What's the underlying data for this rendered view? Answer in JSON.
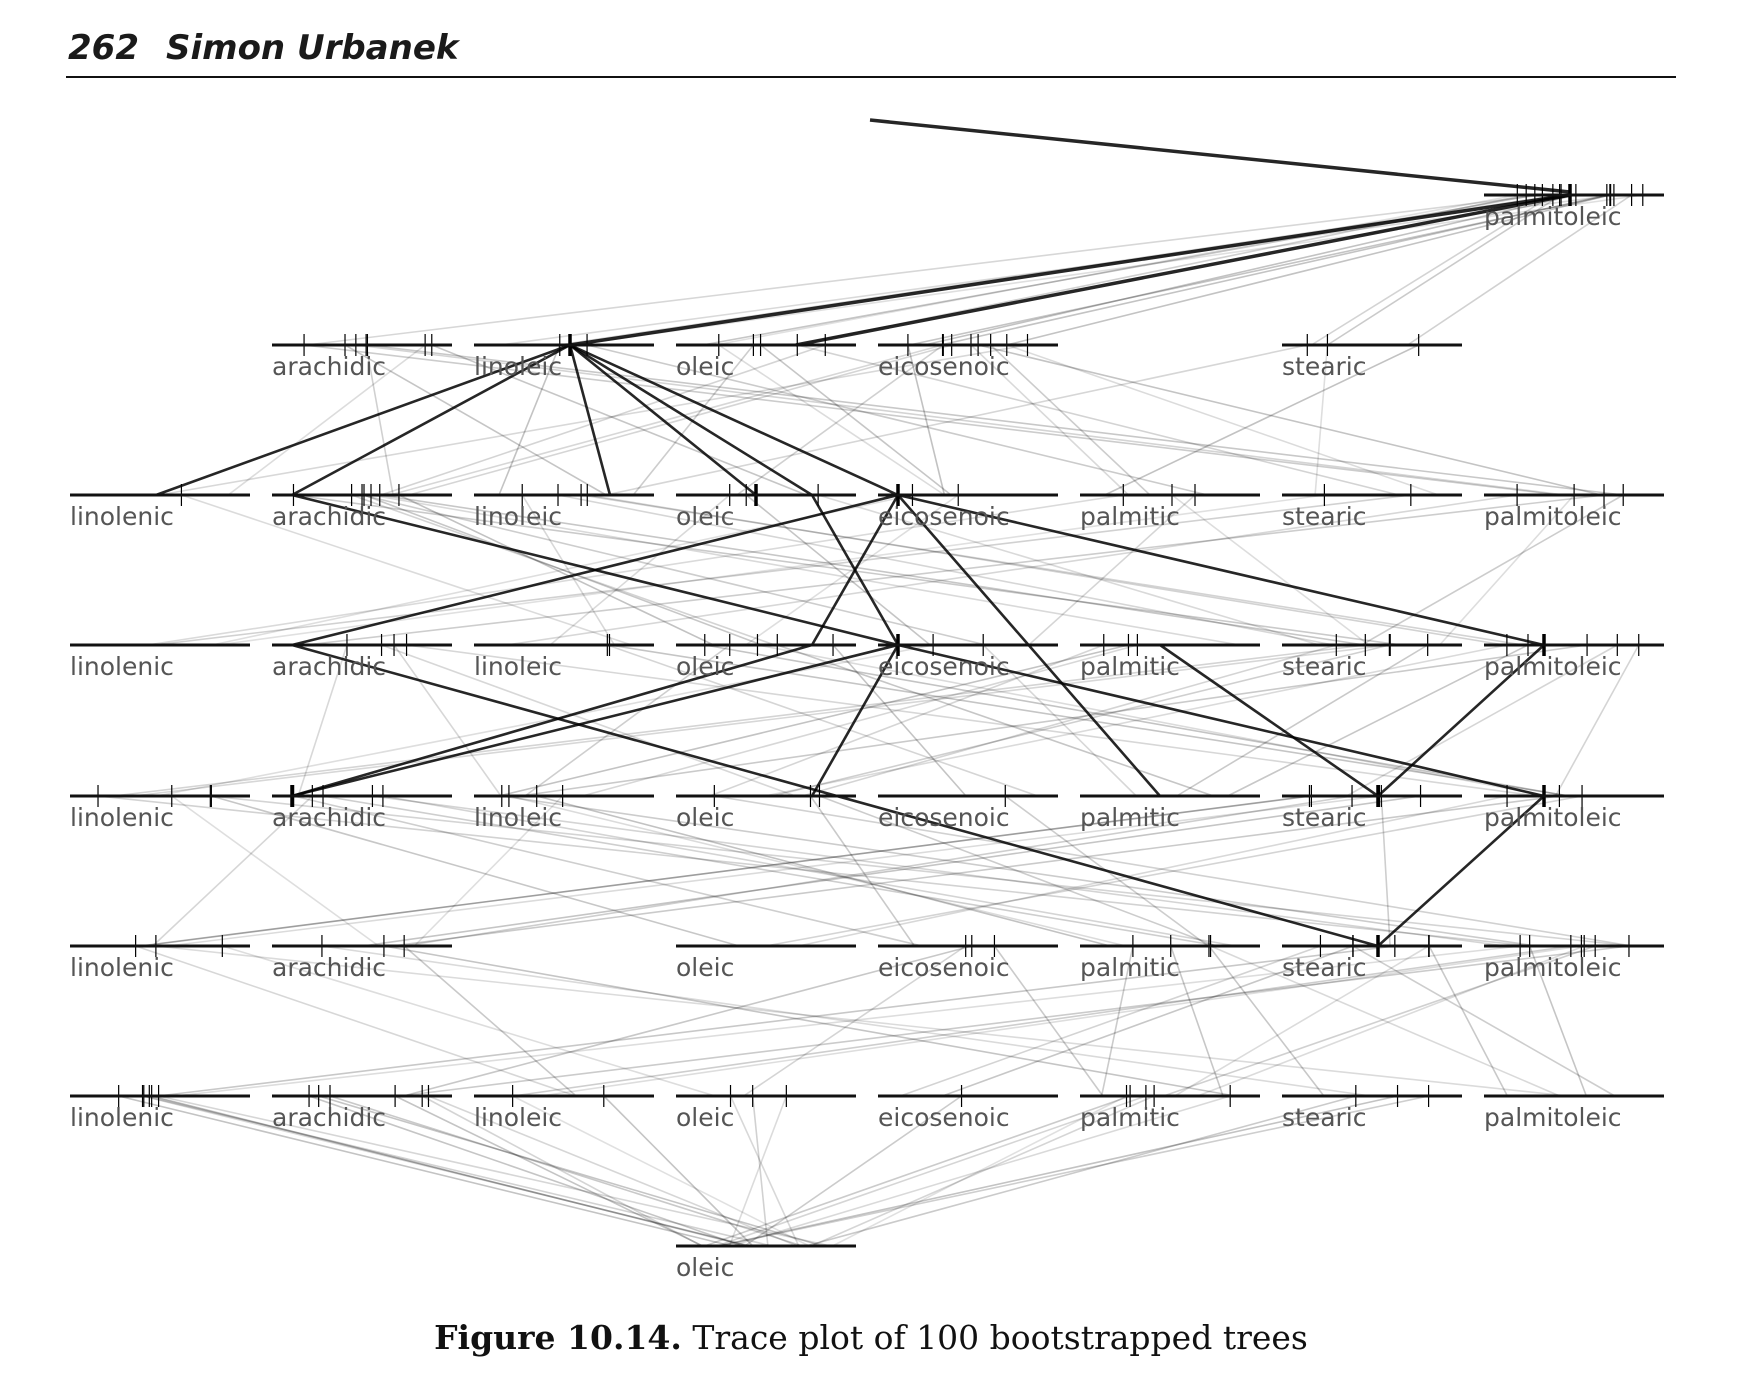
{
  "header": {
    "page_number": "262",
    "author": "Simon Urbanek"
  },
  "figure": {
    "caption_label": "Figure 10.14.",
    "caption_text": "Trace plot of 100 bootstrapped trees"
  },
  "chart_data": {
    "type": "trace plot",
    "levels": [
      [
        "palmitoleic"
      ],
      [
        "arachidic",
        "linoleic",
        "oleic",
        "eicosenoic",
        "stearic"
      ],
      [
        "linolenic",
        "arachidic",
        "linoleic",
        "oleic",
        "eicosenoic",
        "palmitic",
        "stearic",
        "palmitoleic"
      ],
      [
        "linolenic",
        "arachidic",
        "linoleic",
        "oleic",
        "eicosenoic",
        "palmitic",
        "stearic",
        "palmitoleic"
      ],
      [
        "linolenic",
        "arachidic",
        "linoleic",
        "oleic",
        "eicosenoic",
        "palmitic",
        "stearic",
        "palmitoleic"
      ],
      [
        "linolenic",
        "arachidic",
        "oleic",
        "eicosenoic",
        "palmitic",
        "stearic",
        "palmitoleic"
      ],
      [
        "linolenic",
        "arachidic",
        "linoleic",
        "oleic",
        "eicosenoic",
        "palmitic",
        "stearic",
        "palmitoleic"
      ],
      [
        "oleic"
      ]
    ],
    "n_trees": 100
  }
}
